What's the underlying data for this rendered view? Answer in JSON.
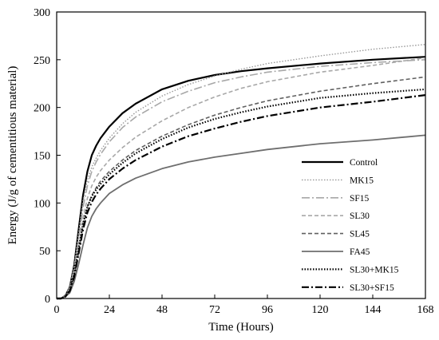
{
  "chart_data": {
    "type": "line",
    "title": "",
    "xlabel": "Time (Hours)",
    "ylabel": "Energy (J/g of cementitious material)",
    "xlim": [
      0,
      168
    ],
    "ylim": [
      0,
      300
    ],
    "xticks": [
      0,
      24,
      48,
      72,
      96,
      120,
      144,
      168
    ],
    "yticks": [
      0,
      50,
      100,
      150,
      200,
      250,
      300
    ],
    "grid": false,
    "legend_position": "bottom-right",
    "x": [
      0,
      2,
      4,
      6,
      8,
      10,
      12,
      14,
      16,
      18,
      20,
      24,
      30,
      36,
      48,
      60,
      72,
      84,
      96,
      120,
      144,
      168
    ],
    "series": [
      {
        "name": "Control",
        "color": "#000000",
        "dash": "",
        "width": 2.2,
        "values": [
          0,
          0,
          3,
          12,
          35,
          72,
          108,
          133,
          150,
          160,
          168,
          180,
          194,
          204,
          219,
          228,
          234,
          238,
          241,
          246,
          250,
          253
        ]
      },
      {
        "name": "MK15",
        "color": "#999999",
        "dash": "1.5,2",
        "width": 1.4,
        "values": [
          0,
          0,
          3,
          12,
          34,
          68,
          102,
          124,
          138,
          147,
          155,
          168,
          183,
          195,
          212,
          224,
          233,
          240,
          246,
          254,
          261,
          266
        ]
      },
      {
        "name": "SF15",
        "color": "#a8a8a8",
        "dash": "10,3,2,3",
        "width": 1.6,
        "values": [
          0,
          0,
          3,
          11,
          31,
          62,
          95,
          118,
          133,
          143,
          151,
          164,
          179,
          190,
          206,
          217,
          226,
          232,
          237,
          243,
          247,
          250
        ]
      },
      {
        "name": "SL30",
        "color": "#a8a8a8",
        "dash": "5,3",
        "width": 1.6,
        "values": [
          0,
          0,
          2,
          9,
          26,
          54,
          84,
          105,
          118,
          127,
          134,
          145,
          158,
          169,
          186,
          200,
          211,
          220,
          227,
          237,
          244,
          252
        ]
      },
      {
        "name": "SL45",
        "color": "#606060",
        "dash": "5,3",
        "width": 1.6,
        "values": [
          0,
          0,
          2,
          8,
          23,
          48,
          76,
          96,
          108,
          116,
          123,
          133,
          145,
          155,
          170,
          182,
          192,
          200,
          207,
          217,
          225,
          232
        ]
      },
      {
        "name": "FA45",
        "color": "#6e6e6e",
        "dash": "",
        "width": 1.8,
        "values": [
          0,
          0,
          2,
          6,
          18,
          36,
          56,
          74,
          86,
          94,
          100,
          110,
          119,
          126,
          136,
          143,
          148,
          152,
          156,
          162,
          166,
          171
        ]
      },
      {
        "name": "SL30+MK15",
        "color": "#000000",
        "dash": "1.5,2",
        "width": 2.2,
        "values": [
          0,
          0,
          2,
          9,
          26,
          52,
          78,
          96,
          107,
          114,
          120,
          130,
          142,
          152,
          167,
          179,
          188,
          195,
          201,
          210,
          215,
          219
        ]
      },
      {
        "name": "SL30+SF15",
        "color": "#000000",
        "dash": "9,3,2,3",
        "width": 2.2,
        "values": [
          0,
          0,
          2,
          8,
          23,
          47,
          72,
          90,
          101,
          109,
          115,
          125,
          136,
          145,
          159,
          170,
          178,
          185,
          191,
          200,
          206,
          213
        ]
      }
    ]
  }
}
